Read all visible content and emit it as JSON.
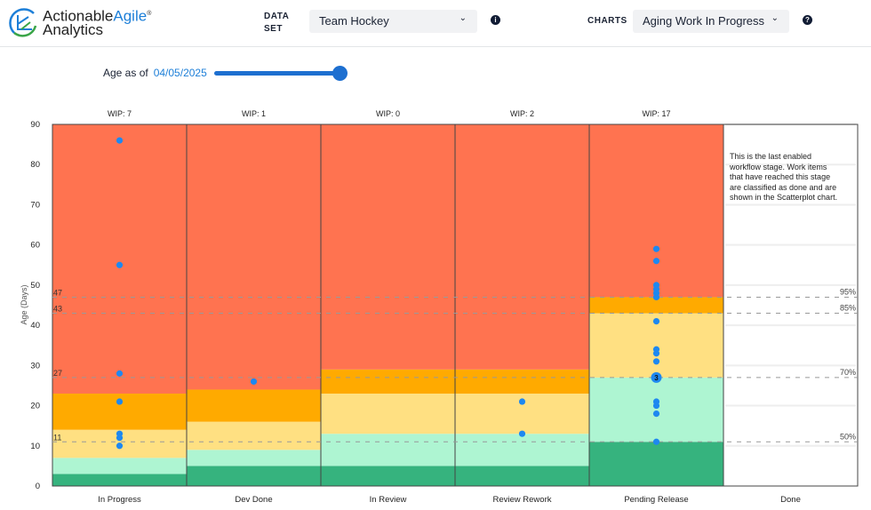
{
  "header": {
    "logo": {
      "part1": "Actionable",
      "part2": "Agile",
      "reg": "®",
      "part3": "Analytics"
    },
    "dataset_label_1": "DATA",
    "dataset_label_2": "SET",
    "dataset_value": "Team Hockey",
    "charts_label": "CHARTS",
    "charts_value": "Aging Work In Progress",
    "info_icon": "info-icon",
    "help_icon": "help-icon"
  },
  "controls": {
    "age_label": "Age as of",
    "age_date": "04/05/2025",
    "slider_value_fraction": 1.0
  },
  "colors": {
    "red": "#ff7350",
    "orange": "#ffaa00",
    "yellow": "#ffe082",
    "lightgreen": "#aef5d2",
    "darkgreen": "#36b37e",
    "dot": "#1e88f0"
  },
  "chart_data": {
    "type": "scatter",
    "title": "Aging Work In Progress",
    "ylabel": "Age (Days)",
    "xlabel": "",
    "ylim": [
      0,
      90
    ],
    "yticks": [
      0,
      10,
      20,
      30,
      40,
      50,
      60,
      70,
      80,
      90
    ],
    "columns": [
      {
        "name": "In Progress",
        "wip_label": "WIP: 7",
        "bands": [
          3,
          7,
          14,
          23
        ],
        "ages": [
          86,
          55,
          28,
          21,
          13,
          12,
          10
        ]
      },
      {
        "name": "Dev Done",
        "wip_label": "WIP: 1",
        "bands": [
          5,
          9,
          16,
          24
        ],
        "ages": [
          26
        ]
      },
      {
        "name": "In Review",
        "wip_label": "WIP: 0",
        "bands": [
          5,
          13,
          23,
          29
        ],
        "ages": []
      },
      {
        "name": "Review Rework",
        "wip_label": "WIP: 2",
        "bands": [
          5,
          13,
          23,
          29
        ],
        "ages": [
          21,
          13
        ]
      },
      {
        "name": "Pending Release",
        "wip_label": "WIP: 17",
        "bands": [
          11,
          27,
          43,
          47
        ],
        "ages": [
          59,
          56,
          50,
          49,
          48,
          47,
          41,
          34,
          33,
          31,
          27,
          27,
          27,
          21,
          20,
          18,
          11
        ],
        "cluster_label": "3"
      },
      {
        "name": "Done",
        "wip_label": "",
        "bands": null,
        "ages": []
      }
    ],
    "percentiles": [
      {
        "label": "50%",
        "value": 11,
        "left_label": "11"
      },
      {
        "label": "70%",
        "value": 27,
        "left_label": "27"
      },
      {
        "label": "85%",
        "value": 43,
        "left_label": "43"
      },
      {
        "label": "95%",
        "value": 47,
        "left_label": "47"
      }
    ],
    "done_note": "This is the last enabled workflow stage. Work items that have reached this stage are classified as done and are shown in the Scatterplot chart."
  }
}
